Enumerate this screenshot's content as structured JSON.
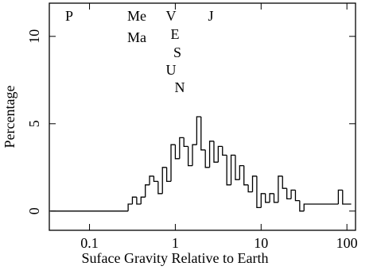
{
  "chart_data": {
    "type": "histogram",
    "xlabel": "Suface Gravity Relative to Earth",
    "ylabel": "Percentage",
    "xscale": "log",
    "xlim": [
      0.034,
      126
    ],
    "ylim": [
      -1.1,
      11.9
    ],
    "xticks": [
      0.1,
      1,
      10,
      100
    ],
    "yticks": [
      0,
      5,
      10
    ],
    "color": "#000000",
    "bins": [
      0.035,
      0.282,
      0.316,
      0.355,
      0.398,
      0.447,
      0.501,
      0.562,
      0.631,
      0.708,
      0.794,
      0.891,
      1,
      1.122,
      1.259,
      1.413,
      1.585,
      1.778,
      1.995,
      2.239,
      2.512,
      2.818,
      3.162,
      3.548,
      3.981,
      4.467,
      5.012,
      5.623,
      6.31,
      7.079,
      7.943,
      8.913,
      10,
      11.22,
      12.59,
      14.13,
      15.85,
      17.78,
      19.95,
      22.39,
      25.12,
      28.18,
      31.62,
      79.43,
      89.13,
      112.2
    ],
    "values": [
      0,
      0.4,
      0.8,
      0.4,
      0.8,
      1.5,
      2.0,
      1.7,
      1.0,
      2.5,
      1.7,
      3.8,
      3.0,
      4.2,
      3.7,
      2.6,
      3.8,
      5.4,
      3.5,
      2.5,
      4.0,
      2.8,
      3.7,
      3.2,
      1.5,
      3.2,
      1.8,
      2.6,
      1.5,
      1.1,
      2.0,
      0.2,
      1.0,
      0.5,
      1.0,
      0.5,
      2.0,
      1.3,
      0.7,
      1.2,
      0.6,
      0.0,
      0.4,
      1.2,
      0.4
    ],
    "annotations": [
      "P",
      "Me",
      "Ma",
      "V",
      "E",
      "S",
      "U",
      "N",
      "J"
    ]
  }
}
